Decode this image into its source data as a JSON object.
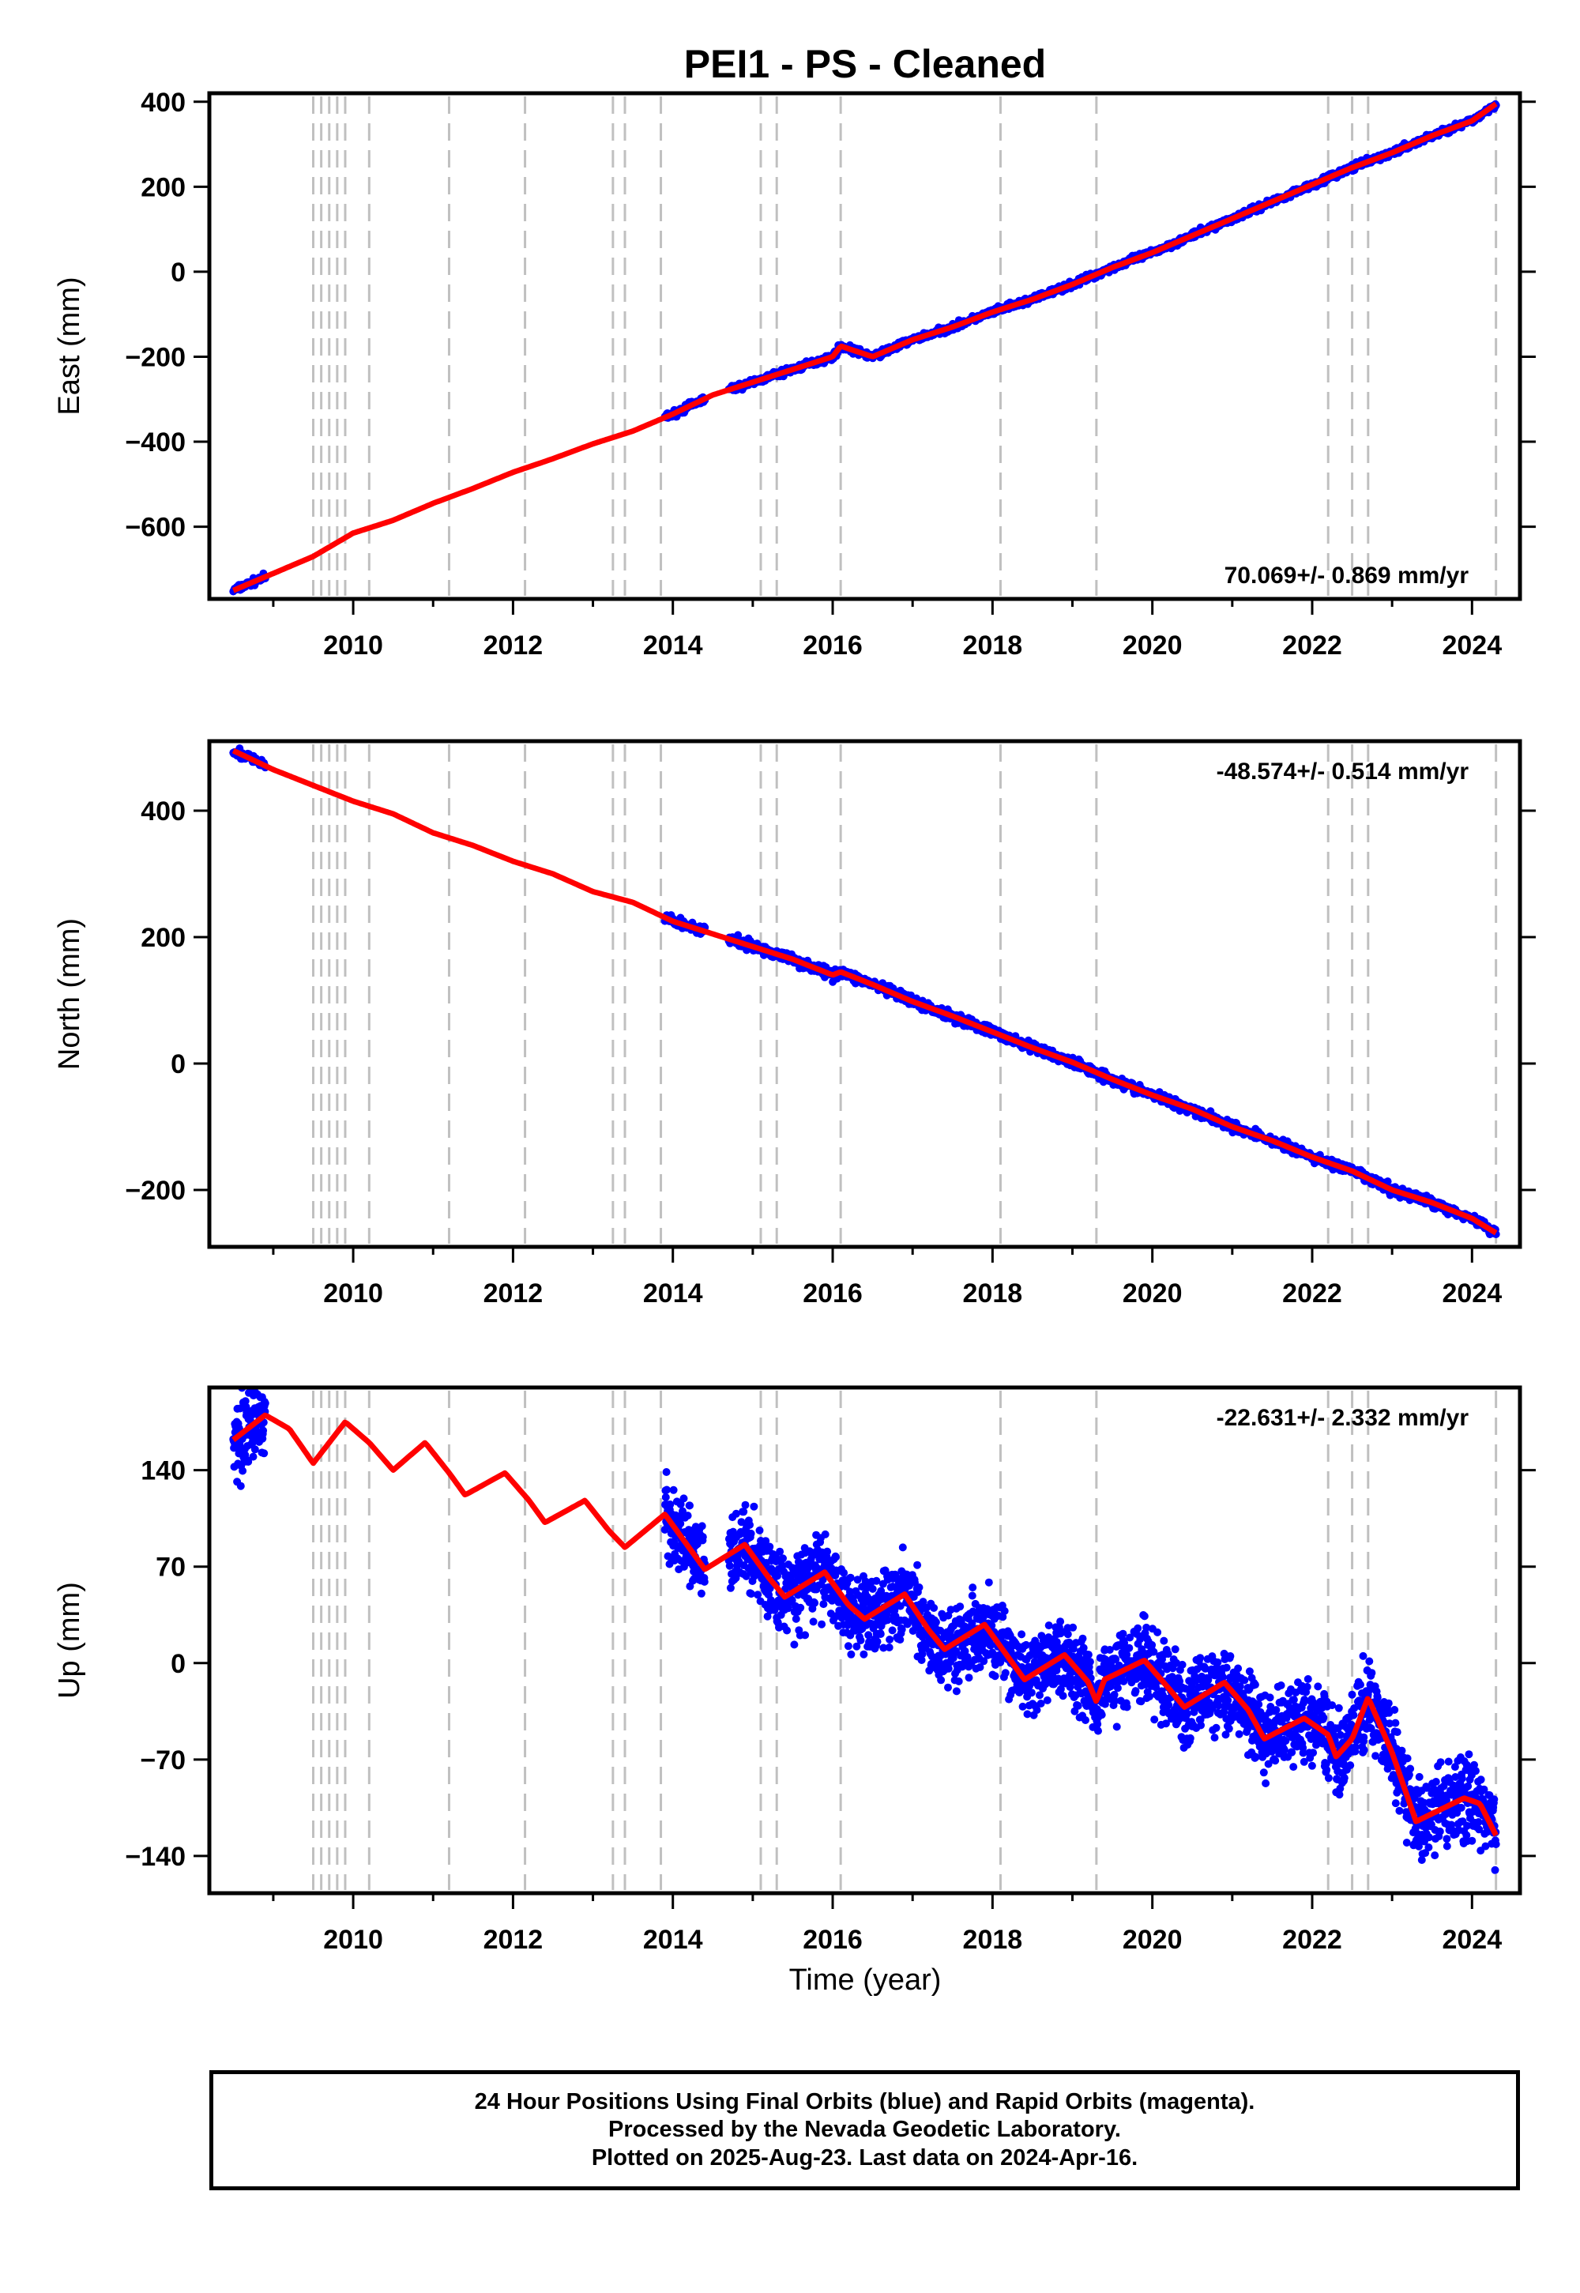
{
  "title": "PEI1  - PS - Cleaned",
  "xlabel": "Time (year)",
  "colors": {
    "final": "#0000ff",
    "model": "#ff0000",
    "events": "#c0c0c0"
  },
  "footer": {
    "line1": "24 Hour Positions Using Final Orbits (blue) and Rapid Orbits (magenta).",
    "line2": "Processed by the Nevada Geodetic Laboratory.",
    "line3": "Plotted on 2025-Aug-23. Last data on 2024-Apr-16."
  },
  "chart_data": [
    {
      "type": "scatter",
      "ylabel": "East (mm)",
      "rate_label": "70.069+/- 0.869 mm/yr",
      "rate_position": "bottom-right",
      "xlim": [
        2008.2,
        2024.6
      ],
      "ylim": [
        -770,
        420
      ],
      "xticks": [
        2010,
        2012,
        2014,
        2016,
        2018,
        2020,
        2022,
        2024
      ],
      "yticks": [
        -600,
        -400,
        -200,
        0,
        200,
        400
      ],
      "event_lines": [
        2009.5,
        2009.6,
        2009.7,
        2009.8,
        2009.9,
        2010.2,
        2011.2,
        2012.15,
        2013.25,
        2013.4,
        2013.85,
        2015.1,
        2015.3,
        2016.1,
        2018.1,
        2019.3,
        2022.2,
        2022.5,
        2022.7,
        2024.3
      ],
      "data_segments": [
        [
          2008.5,
          2008.9
        ],
        [
          2013.9,
          2014.4
        ],
        [
          2014.7,
          2024.3
        ]
      ],
      "model": {
        "x": [
          2008.5,
          2009.0,
          2009.5,
          2010.0,
          2010.5,
          2011.0,
          2011.5,
          2012.0,
          2012.5,
          2013.0,
          2013.5,
          2014.0,
          2014.5,
          2015.0,
          2015.5,
          2016.0,
          2016.1,
          2016.5,
          2017.0,
          2017.5,
          2018.0,
          2018.5,
          2019.0,
          2019.5,
          2020.0,
          2020.5,
          2021.0,
          2021.5,
          2022.0,
          2022.5,
          2023.0,
          2023.5,
          2024.0,
          2024.3
        ],
        "y": [
          -750,
          -710,
          -670,
          -615,
          -585,
          -545,
          -510,
          -472,
          -440,
          -405,
          -375,
          -335,
          -290,
          -260,
          -230,
          -200,
          -175,
          -200,
          -160,
          -130,
          -95,
          -65,
          -30,
          10,
          45,
          85,
          125,
          165,
          205,
          245,
          280,
          320,
          355,
          395
        ]
      },
      "rate": 70.069,
      "rate_sigma": 0.869
    },
    {
      "type": "scatter",
      "ylabel": "North (mm)",
      "rate_label": "-48.574+/- 0.514 mm/yr",
      "rate_position": "top-right",
      "xlim": [
        2008.2,
        2024.6
      ],
      "ylim": [
        -290,
        510
      ],
      "xticks": [
        2010,
        2012,
        2014,
        2016,
        2018,
        2020,
        2022,
        2024
      ],
      "yticks": [
        -200,
        0,
        200,
        400
      ],
      "event_lines": [
        2009.5,
        2009.6,
        2009.7,
        2009.8,
        2009.9,
        2010.2,
        2011.2,
        2012.15,
        2013.25,
        2013.4,
        2013.85,
        2015.1,
        2015.3,
        2016.1,
        2018.1,
        2019.3,
        2022.2,
        2022.5,
        2022.7,
        2024.3
      ],
      "data_segments": [
        [
          2008.5,
          2008.9
        ],
        [
          2013.9,
          2014.4
        ],
        [
          2014.7,
          2024.3
        ]
      ],
      "model": {
        "x": [
          2008.5,
          2009.0,
          2009.5,
          2010.0,
          2010.5,
          2011.0,
          2011.5,
          2012.0,
          2012.5,
          2013.0,
          2013.5,
          2014.0,
          2014.5,
          2015.0,
          2015.5,
          2016.0,
          2016.1,
          2016.5,
          2017.0,
          2017.5,
          2018.0,
          2018.5,
          2019.0,
          2019.5,
          2020.0,
          2020.5,
          2021.0,
          2021.5,
          2022.0,
          2022.5,
          2023.0,
          2023.5,
          2024.0,
          2024.3
        ],
        "y": [
          495,
          465,
          440,
          415,
          395,
          365,
          345,
          320,
          300,
          272,
          255,
          225,
          205,
          185,
          165,
          140,
          145,
          125,
          98,
          75,
          50,
          25,
          2,
          -25,
          -50,
          -72,
          -100,
          -122,
          -148,
          -170,
          -200,
          -220,
          -245,
          -268
        ]
      },
      "rate": -48.574,
      "rate_sigma": 0.514
    },
    {
      "type": "scatter",
      "ylabel": "Up (mm)",
      "rate_label": "-22.631+/- 2.332 mm/yr",
      "rate_position": "top-right",
      "xlim": [
        2008.2,
        2024.6
      ],
      "ylim": [
        -167,
        200
      ],
      "xticks": [
        2010,
        2012,
        2014,
        2016,
        2018,
        2020,
        2022,
        2024
      ],
      "yticks": [
        -140,
        -70,
        0,
        70,
        140
      ],
      "event_lines": [
        2009.5,
        2009.6,
        2009.7,
        2009.8,
        2009.9,
        2010.2,
        2011.2,
        2012.15,
        2013.25,
        2013.4,
        2013.85,
        2015.1,
        2015.3,
        2016.1,
        2018.1,
        2019.3,
        2022.2,
        2022.5,
        2022.7,
        2024.3
      ],
      "data_segments": [
        [
          2008.5,
          2008.9
        ],
        [
          2013.9,
          2014.4
        ],
        [
          2014.7,
          2024.3
        ]
      ],
      "model": {
        "x": [
          2008.5,
          2008.9,
          2009.2,
          2009.5,
          2009.9,
          2010.2,
          2010.5,
          2010.9,
          2011.2,
          2011.4,
          2011.9,
          2012.2,
          2012.4,
          2012.9,
          2013.2,
          2013.4,
          2013.9,
          2014.2,
          2014.4,
          2014.9,
          2015.2,
          2015.4,
          2015.9,
          2016.2,
          2016.4,
          2016.9,
          2017.2,
          2017.4,
          2017.9,
          2018.2,
          2018.4,
          2018.9,
          2019.2,
          2019.3,
          2019.4,
          2019.9,
          2020.2,
          2020.4,
          2020.9,
          2021.2,
          2021.4,
          2021.9,
          2022.2,
          2022.3,
          2022.5,
          2022.7,
          2023.0,
          2023.3,
          2023.9,
          2024.1,
          2024.3
        ],
        "y": [
          162,
          180,
          170,
          145,
          175,
          160,
          140,
          160,
          138,
          122,
          138,
          118,
          102,
          118,
          96,
          84,
          108,
          84,
          68,
          86,
          62,
          48,
          66,
          42,
          32,
          50,
          24,
          10,
          28,
          4,
          -12,
          6,
          -14,
          -28,
          -12,
          2,
          -18,
          -32,
          -14,
          -34,
          -55,
          -40,
          -52,
          -68,
          -55,
          -25,
          -65,
          -115,
          -98,
          -102,
          -125
        ]
      },
      "rate": -22.631,
      "rate_sigma": 2.332
    }
  ]
}
